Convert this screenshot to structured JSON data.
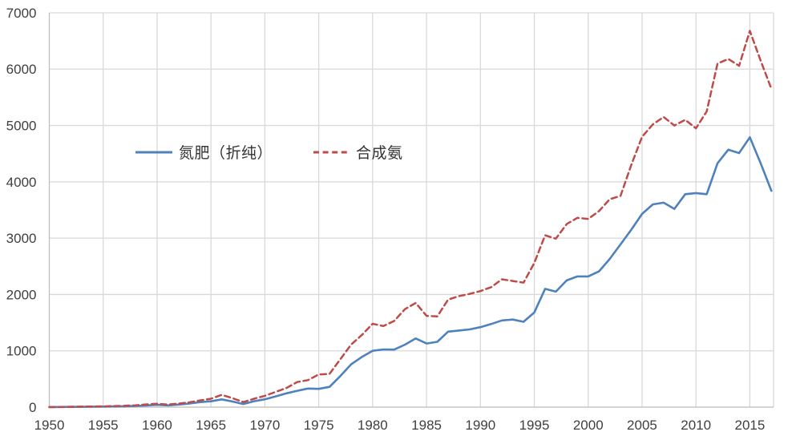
{
  "chart_data": {
    "type": "line",
    "title": "",
    "xlabel": "",
    "ylabel": "",
    "unit_hint": "",
    "xlim": [
      1950,
      2017.2
    ],
    "ylim": [
      0,
      7000
    ],
    "grid": true,
    "legend_position": "inside-upper-left",
    "yticks": [
      0,
      1000,
      2000,
      3000,
      4000,
      5000,
      6000,
      7000
    ],
    "xticks": [
      1950,
      1955,
      1960,
      1965,
      1970,
      1975,
      1980,
      1985,
      1990,
      1995,
      2000,
      2005,
      2010,
      2015
    ],
    "x": [
      1950,
      1951,
      1952,
      1953,
      1954,
      1955,
      1956,
      1957,
      1958,
      1959,
      1960,
      1961,
      1962,
      1963,
      1964,
      1965,
      1966,
      1967,
      1968,
      1969,
      1970,
      1971,
      1972,
      1973,
      1974,
      1975,
      1976,
      1977,
      1978,
      1979,
      1980,
      1981,
      1982,
      1983,
      1984,
      1985,
      1986,
      1987,
      1988,
      1989,
      1990,
      1991,
      1992,
      1993,
      1994,
      1995,
      1996,
      1997,
      1998,
      1999,
      2000,
      2001,
      2002,
      2003,
      2004,
      2005,
      2006,
      2007,
      2008,
      2009,
      2010,
      2011,
      2012,
      2013,
      2014,
      2015,
      2016,
      2017
    ],
    "series": [
      {
        "name": "氮肥（折纯）",
        "color": "#4F81BD",
        "line_style": "solid",
        "line_width": 2.6,
        "values": [
          1.5,
          2.6,
          3.9,
          5.7,
          7.9,
          10.5,
          13.5,
          16,
          22,
          30,
          41,
          32,
          46,
          64,
          89,
          104,
          138,
          100,
          55,
          105,
          139,
          190,
          245,
          290,
          330,
          325,
          360,
          550,
          760,
          890,
          1000,
          1025,
          1022,
          1110,
          1220,
          1130,
          1160,
          1340,
          1360,
          1380,
          1420,
          1475,
          1540,
          1555,
          1515,
          1680,
          2100,
          2050,
          2250,
          2320,
          2320,
          2410,
          2630,
          2890,
          3150,
          3430,
          3600,
          3630,
          3520,
          3780,
          3800,
          3780,
          4330,
          4570,
          4510,
          4790,
          4330,
          3840
        ]
      },
      {
        "name": "合成氨",
        "color": "#BE4B48",
        "line_style": "dashed",
        "line_width": 2.5,
        "values": [
          2,
          3.5,
          5.5,
          8,
          11,
          14.5,
          19,
          24,
          33,
          48,
          60,
          45,
          62,
          85,
          120,
          150,
          218,
          160,
          90,
          150,
          200,
          270,
          340,
          445,
          480,
          580,
          590,
          850,
          1110,
          1280,
          1480,
          1440,
          1530,
          1740,
          1850,
          1620,
          1610,
          1910,
          1970,
          2010,
          2060,
          2130,
          2270,
          2240,
          2210,
          2560,
          3050,
          2990,
          3250,
          3360,
          3340,
          3480,
          3690,
          3750,
          4300,
          4800,
          5020,
          5150,
          5000,
          5100,
          4950,
          5250,
          6100,
          6180,
          6060,
          6680,
          6150,
          5650
        ]
      }
    ],
    "colors": {
      "grid": "#D9D9D9",
      "axis_line": "#BFBFBF",
      "tick_text": "#404040",
      "background": "#FFFFFF"
    }
  }
}
